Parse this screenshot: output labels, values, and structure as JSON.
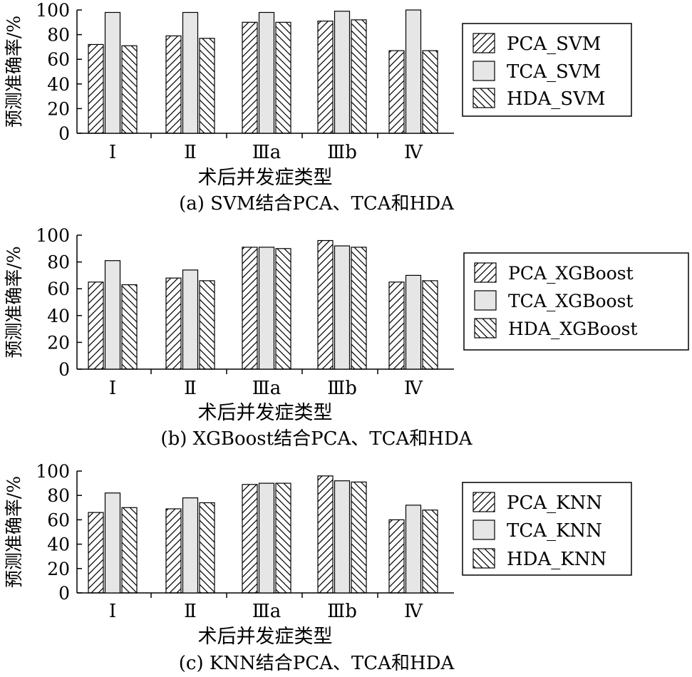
{
  "chart_data": [
    {
      "type": "bar",
      "caption": "(a) SVM结合PCA、TCA和HDA",
      "xlabel": "术后并发症类型",
      "ylabel": "预测准确率/%",
      "categories": [
        "Ⅰ",
        "Ⅱ",
        "Ⅲa",
        "Ⅲb",
        "Ⅳ"
      ],
      "ylim": [
        0,
        100
      ],
      "yticks": [
        0,
        20,
        40,
        60,
        80,
        100
      ],
      "legend_position": "right",
      "series": [
        {
          "name": "PCA_SVM",
          "values": [
            72,
            79,
            90,
            91,
            67
          ]
        },
        {
          "name": "TCA_SVM",
          "values": [
            98,
            98,
            98,
            99,
            100
          ]
        },
        {
          "name": "HDA_SVM",
          "values": [
            71,
            77,
            90,
            92,
            67
          ]
        }
      ]
    },
    {
      "type": "bar",
      "caption": "(b) XGBoost结合PCA、TCA和HDA",
      "xlabel": "术后并发症类型",
      "ylabel": "预测准确率/%",
      "categories": [
        "Ⅰ",
        "Ⅱ",
        "Ⅲa",
        "Ⅲb",
        "Ⅳ"
      ],
      "ylim": [
        0,
        100
      ],
      "yticks": [
        0,
        20,
        40,
        60,
        80,
        100
      ],
      "legend_position": "right",
      "series": [
        {
          "name": "PCA_XGBoost",
          "values": [
            65,
            68,
            91,
            96,
            65
          ]
        },
        {
          "name": "TCA_XGBoost",
          "values": [
            81,
            74,
            91,
            92,
            70
          ]
        },
        {
          "name": "HDA_XGBoost",
          "values": [
            63,
            66,
            90,
            91,
            66
          ]
        }
      ]
    },
    {
      "type": "bar",
      "caption": "(c) KNN结合PCA、TCA和HDA",
      "xlabel": "术后并发症类型",
      "ylabel": "预测准确率/%",
      "categories": [
        "Ⅰ",
        "Ⅱ",
        "Ⅲa",
        "Ⅲb",
        "Ⅳ"
      ],
      "ylim": [
        0,
        100
      ],
      "yticks": [
        0,
        20,
        40,
        60,
        80,
        100
      ],
      "legend_position": "right",
      "series": [
        {
          "name": "PCA_KNN",
          "values": [
            66,
            69,
            89,
            96,
            60
          ]
        },
        {
          "name": "TCA_KNN",
          "values": [
            82,
            78,
            90,
            92,
            72
          ]
        },
        {
          "name": "HDA_KNN",
          "values": [
            70,
            74,
            90,
            91,
            68
          ]
        }
      ]
    }
  ]
}
